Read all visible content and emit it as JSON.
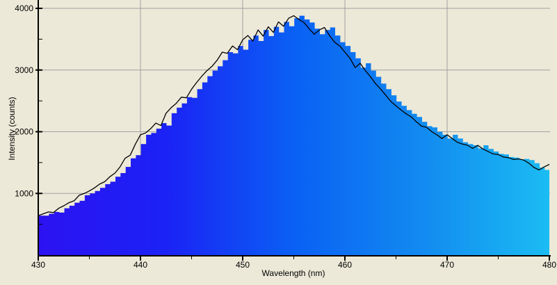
{
  "chart_data": {
    "type": "area",
    "title": "",
    "xlabel": "Wavelength (nm)",
    "ylabel": "Intensity (counts)",
    "xlim": [
      430,
      480
    ],
    "ylim": [
      0,
      4000
    ],
    "x_ticks_major": [
      430,
      440,
      450,
      460,
      470,
      480
    ],
    "x_ticks_minor": [
      435,
      445,
      455,
      465,
      475
    ],
    "x_gridlines": [
      440,
      450,
      460,
      470
    ],
    "y_ticks_major": [
      1000,
      2000,
      3000,
      4000
    ],
    "y_ticks_minor": [
      500,
      1500,
      2500,
      3500
    ],
    "grid": true,
    "legend": "none",
    "series": [
      {
        "name": "spectrum-trace",
        "style": "line",
        "color": "#000000",
        "x": [
          430,
          430.5,
          431,
          431.5,
          432,
          432.5,
          433,
          433.5,
          434,
          434.5,
          435,
          435.5,
          436,
          436.5,
          437,
          437.5,
          438,
          438.5,
          439,
          439.5,
          440,
          440.5,
          441,
          441.5,
          442,
          442.5,
          443,
          443.5,
          444,
          444.5,
          445,
          445.5,
          446,
          446.5,
          447,
          447.5,
          448,
          448.5,
          449,
          449.5,
          450,
          450.5,
          451,
          451.5,
          452,
          452.5,
          453,
          453.5,
          454,
          454.5,
          455,
          455.5,
          456,
          456.5,
          457,
          457.5,
          458,
          458.5,
          459,
          459.5,
          460,
          460.5,
          461,
          461.5,
          462,
          462.5,
          463,
          463.5,
          464,
          464.5,
          465,
          465.5,
          466,
          466.5,
          467,
          467.5,
          468,
          468.5,
          469,
          469.5,
          470,
          470.5,
          471,
          471.5,
          472,
          472.5,
          473,
          473.5,
          474,
          474.5,
          475,
          475.5,
          476,
          476.5,
          477,
          477.5,
          478,
          478.5,
          479,
          479.5,
          480
        ],
        "values": [
          640,
          670,
          700,
          690,
          760,
          800,
          850,
          880,
          970,
          1000,
          1040,
          1090,
          1150,
          1190,
          1270,
          1330,
          1430,
          1570,
          1620,
          1800,
          1950,
          1980,
          2050,
          2140,
          2100,
          2300,
          2390,
          2460,
          2560,
          2550,
          2690,
          2800,
          2900,
          2990,
          3060,
          3160,
          3290,
          3270,
          3390,
          3330,
          3490,
          3560,
          3470,
          3650,
          3550,
          3700,
          3610,
          3780,
          3710,
          3840,
          3880,
          3820,
          3770,
          3670,
          3580,
          3650,
          3690,
          3560,
          3450,
          3390,
          3290,
          3190,
          3040,
          3110,
          2990,
          2890,
          2780,
          2690,
          2590,
          2490,
          2420,
          2350,
          2290,
          2240,
          2160,
          2090,
          2070,
          2000,
          1950,
          1890,
          1950,
          1890,
          1830,
          1800,
          1780,
          1730,
          1780,
          1720,
          1680,
          1640,
          1630,
          1590,
          1580,
          1550,
          1560,
          1540,
          1490,
          1420,
          1380,
          1430,
          1470
        ]
      },
      {
        "name": "spectrum-fill",
        "style": "stepped-area-gradient",
        "derived_from": "spectrum-trace",
        "x_shift_nm": 0.55
      }
    ],
    "peak": {
      "wavelength_nm": 455,
      "intensity_counts": 3880
    },
    "colors": {
      "background": "#ECE9D8",
      "gridline": "#A0A0A0",
      "axis": "#000000",
      "trace_line": "#000000",
      "fill_gradient": [
        {
          "offset": 0.0,
          "color": "#2C12F2"
        },
        {
          "offset": 0.25,
          "color": "#1B22F5"
        },
        {
          "offset": 0.5,
          "color": "#0A60F4"
        },
        {
          "offset": 0.75,
          "color": "#128AF0"
        },
        {
          "offset": 1.0,
          "color": "#1BBCF3"
        }
      ]
    }
  }
}
